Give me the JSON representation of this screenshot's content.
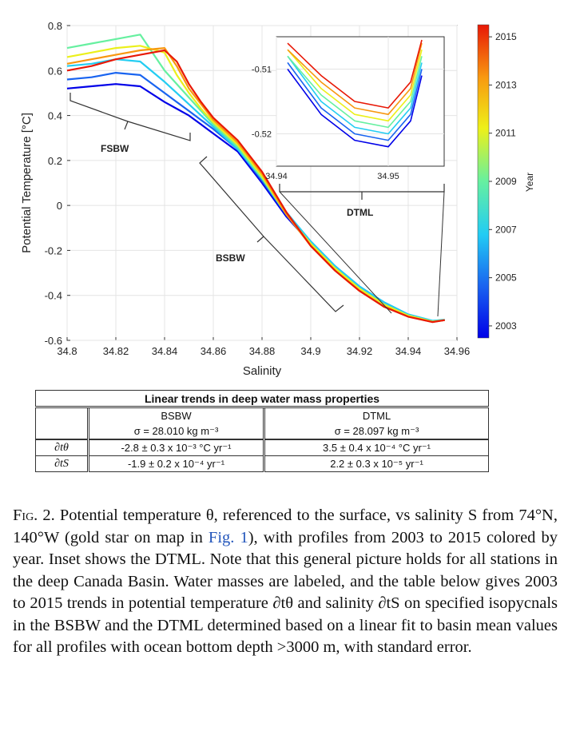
{
  "chart_data": {
    "type": "line",
    "xlabel": "Salinity",
    "ylabel": "Potential Temperature [°C]",
    "xlim": [
      34.8,
      34.96
    ],
    "ylim": [
      -0.6,
      0.8
    ],
    "x_ticks": [
      "34.8",
      "34.82",
      "34.84",
      "34.86",
      "34.88",
      "34.9",
      "34.92",
      "34.94",
      "34.96"
    ],
    "y_ticks": [
      "-0.6",
      "-0.4",
      "-0.2",
      "0",
      "0.2",
      "0.4",
      "0.6",
      "0.8"
    ],
    "colorbar": {
      "label": "Year",
      "ticks": [
        "2003",
        "2005",
        "2007",
        "2009",
        "2011",
        "2013",
        "2015"
      ],
      "colors": [
        "#0a12e0",
        "#1e6cf0",
        "#25c8f0",
        "#4ee8a0",
        "#e8f020",
        "#f8a010",
        "#e8200a"
      ]
    },
    "series_years": [
      2003,
      2005,
      2007,
      2009,
      2011,
      2013,
      2015
    ],
    "series": [
      {
        "name": "2003",
        "x": [
          34.8,
          34.81,
          34.82,
          34.83,
          34.84,
          34.845,
          34.85,
          34.855,
          34.86,
          34.87,
          34.88,
          34.89,
          34.9,
          34.91,
          34.92,
          34.93,
          34.94,
          34.95,
          34.955
        ],
        "y": [
          0.52,
          0.53,
          0.54,
          0.53,
          0.46,
          0.43,
          0.4,
          0.36,
          0.32,
          0.24,
          0.1,
          -0.05,
          -0.17,
          -0.28,
          -0.37,
          -0.44,
          -0.49,
          -0.515,
          -0.51
        ]
      },
      {
        "name": "2005",
        "x": [
          34.8,
          34.81,
          34.82,
          34.83,
          34.84,
          34.845,
          34.85,
          34.855,
          34.86,
          34.87,
          34.88,
          34.89,
          34.9,
          34.91,
          34.92,
          34.93,
          34.94,
          34.95,
          34.955
        ],
        "y": [
          0.56,
          0.57,
          0.59,
          0.58,
          0.5,
          0.46,
          0.42,
          0.38,
          0.34,
          0.25,
          0.11,
          -0.04,
          -0.16,
          -0.27,
          -0.36,
          -0.43,
          -0.485,
          -0.514,
          -0.51
        ]
      },
      {
        "name": "2007",
        "x": [
          34.8,
          34.81,
          34.82,
          34.83,
          34.84,
          34.845,
          34.85,
          34.855,
          34.86,
          34.87,
          34.88,
          34.89,
          34.9,
          34.91,
          34.92,
          34.93,
          34.94,
          34.95,
          34.955
        ],
        "y": [
          0.62,
          0.63,
          0.65,
          0.64,
          0.55,
          0.5,
          0.45,
          0.4,
          0.35,
          0.25,
          0.12,
          -0.03,
          -0.16,
          -0.27,
          -0.36,
          -0.43,
          -0.485,
          -0.513,
          -0.508
        ]
      },
      {
        "name": "2009",
        "x": [
          34.8,
          34.81,
          34.82,
          34.83,
          34.84,
          34.845,
          34.85,
          34.855,
          34.86,
          34.87,
          34.88,
          34.89,
          34.9,
          34.91,
          34.92,
          34.93,
          34.94,
          34.95,
          34.955
        ],
        "y": [
          0.7,
          0.72,
          0.74,
          0.76,
          0.6,
          0.54,
          0.48,
          0.42,
          0.36,
          0.26,
          0.12,
          -0.04,
          -0.17,
          -0.28,
          -0.37,
          -0.44,
          -0.49,
          -0.516,
          -0.51
        ]
      },
      {
        "name": "2011",
        "x": [
          34.8,
          34.81,
          34.82,
          34.83,
          34.84,
          34.845,
          34.85,
          34.855,
          34.86,
          34.87,
          34.88,
          34.89,
          34.9,
          34.91,
          34.92,
          34.93,
          34.94,
          34.95,
          34.955
        ],
        "y": [
          0.66,
          0.68,
          0.7,
          0.71,
          0.68,
          0.58,
          0.5,
          0.43,
          0.37,
          0.27,
          0.13,
          -0.04,
          -0.17,
          -0.28,
          -0.37,
          -0.44,
          -0.49,
          -0.517,
          -0.51
        ]
      },
      {
        "name": "2013",
        "x": [
          34.8,
          34.81,
          34.82,
          34.83,
          34.84,
          34.845,
          34.85,
          34.855,
          34.86,
          34.87,
          34.88,
          34.89,
          34.9,
          34.91,
          34.92,
          34.93,
          34.94,
          34.95,
          34.955
        ],
        "y": [
          0.63,
          0.65,
          0.67,
          0.69,
          0.7,
          0.62,
          0.52,
          0.45,
          0.38,
          0.28,
          0.14,
          -0.04,
          -0.18,
          -0.29,
          -0.38,
          -0.45,
          -0.495,
          -0.518,
          -0.51
        ]
      },
      {
        "name": "2015",
        "x": [
          34.8,
          34.81,
          34.82,
          34.83,
          34.84,
          34.845,
          34.85,
          34.855,
          34.86,
          34.87,
          34.88,
          34.89,
          34.9,
          34.91,
          34.92,
          34.93,
          34.94,
          34.95,
          34.955
        ],
        "y": [
          0.6,
          0.62,
          0.65,
          0.67,
          0.69,
          0.64,
          0.54,
          0.46,
          0.39,
          0.29,
          0.15,
          -0.03,
          -0.18,
          -0.29,
          -0.38,
          -0.45,
          -0.495,
          -0.519,
          -0.51
        ]
      }
    ],
    "water_mass_labels": [
      "FSBW",
      "BSBW",
      "DTML"
    ],
    "inset": {
      "xlim": [
        34.94,
        34.955
      ],
      "ylim": [
        -0.525,
        -0.505
      ],
      "x_ticks": [
        "34.94",
        "34.95"
      ],
      "y_ticks": [
        "-0.51",
        "-0.52"
      ],
      "series": [
        {
          "name": "2003",
          "x": [
            34.941,
            34.944,
            34.947,
            34.95,
            34.952,
            34.953
          ],
          "y": [
            -0.51,
            -0.517,
            -0.521,
            -0.522,
            -0.518,
            -0.511
          ]
        },
        {
          "name": "2005",
          "x": [
            34.941,
            34.944,
            34.947,
            34.95,
            34.952,
            34.953
          ],
          "y": [
            -0.509,
            -0.516,
            -0.52,
            -0.521,
            -0.517,
            -0.51
          ]
        },
        {
          "name": "2007",
          "x": [
            34.941,
            34.944,
            34.947,
            34.95,
            34.952,
            34.953
          ],
          "y": [
            -0.508,
            -0.515,
            -0.519,
            -0.52,
            -0.516,
            -0.509
          ]
        },
        {
          "name": "2009",
          "x": [
            34.941,
            34.944,
            34.947,
            34.95,
            34.952,
            34.953
          ],
          "y": [
            -0.508,
            -0.514,
            -0.518,
            -0.519,
            -0.515,
            -0.508
          ]
        },
        {
          "name": "2011",
          "x": [
            34.941,
            34.944,
            34.947,
            34.95,
            34.952,
            34.953
          ],
          "y": [
            -0.507,
            -0.513,
            -0.517,
            -0.518,
            -0.514,
            -0.507
          ]
        },
        {
          "name": "2013",
          "x": [
            34.941,
            34.944,
            34.947,
            34.95,
            34.952,
            34.953
          ],
          "y": [
            -0.507,
            -0.512,
            -0.516,
            -0.517,
            -0.513,
            -0.506
          ]
        },
        {
          "name": "2015",
          "x": [
            34.941,
            34.944,
            34.947,
            34.95,
            34.952,
            34.953
          ],
          "y": [
            -0.506,
            -0.511,
            -0.515,
            -0.516,
            -0.512,
            -0.5055
          ]
        }
      ]
    }
  },
  "table": {
    "title": "Linear trends in deep water mass properties",
    "col_bsbw": "BSBW",
    "col_dtml": "DTML",
    "sigma_bsbw": "σ = 28.010 kg m⁻³",
    "sigma_dtml": "σ = 28.097 kg m⁻³",
    "row_theta_label": "∂tθ",
    "row_s_label": "∂tS",
    "theta_bsbw": "-2.8 ± 0.3 x 10⁻³ °C yr⁻¹",
    "theta_dtml": "3.5 ± 0.4 x 10⁻⁴ °C yr⁻¹",
    "s_bsbw": "-1.9 ± 0.2 x 10⁻⁴  yr⁻¹",
    "s_dtml": "2.2 ± 0.3 x 10⁻⁵  yr⁻¹"
  },
  "caption": {
    "label": "Fig. 2.",
    "part1": "Potential temperature θ, referenced to the surface, vs salinity S from 74°N, 140°W (gold star on map in",
    "link": "Fig. 1",
    "part2": "), with profiles from 2003 to 2015 colored by year. Inset shows the DTML. Note that this general picture holds for all stations in the deep Canada Basin. Water masses are labeled, and the table below gives 2003 to 2015 trends in potential temperature ∂tθ and salinity ∂tS on specified isopycnals in the BSBW and the DTML determined based on a linear fit to basin mean values for all profiles with ocean bottom depth >3000 m, with standard error."
  }
}
